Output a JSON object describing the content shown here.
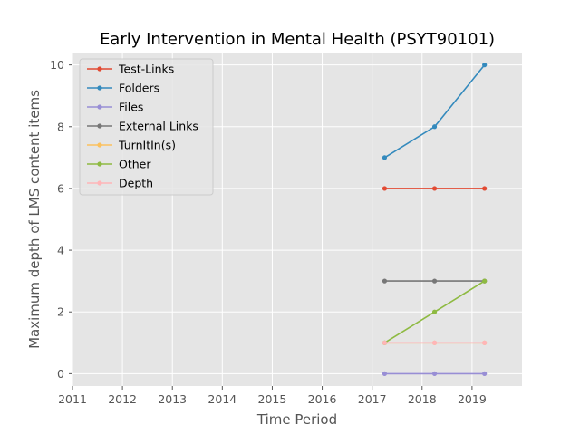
{
  "chart_data": {
    "type": "line",
    "title": "Early Intervention in Mental Health (PSYT90101)",
    "xlabel": "Time Period",
    "ylabel": "Maximum depth of LMS content items",
    "xlim": [
      2011,
      2020
    ],
    "ylim": [
      -0.4,
      10.4
    ],
    "xticks": [
      "2011",
      "2012",
      "2013",
      "2014",
      "2015",
      "2016",
      "2017",
      "2018",
      "2019"
    ],
    "yticks": [
      "0",
      "2",
      "4",
      "6",
      "8",
      "10"
    ],
    "grid": true,
    "legend_position": "upper left",
    "x": [
      2017.25,
      2018.25,
      2019.25
    ],
    "series": [
      {
        "name": "Test-Links",
        "color": "#e24a33",
        "values": [
          6,
          6,
          6
        ]
      },
      {
        "name": "Folders",
        "color": "#348abd",
        "values": [
          7,
          8,
          10
        ]
      },
      {
        "name": "Files",
        "color": "#988ed5",
        "values": [
          0,
          0,
          0
        ]
      },
      {
        "name": "External Links",
        "color": "#777777",
        "values": [
          3,
          3,
          3
        ]
      },
      {
        "name": "TurnItIn(s)",
        "color": "#fbc15e",
        "values": [
          1,
          1,
          1
        ]
      },
      {
        "name": "Other",
        "color": "#8eba42",
        "values": [
          1,
          2,
          3
        ]
      },
      {
        "name": "Depth",
        "color": "#ffb5b8",
        "values": [
          1,
          1,
          1
        ]
      }
    ]
  }
}
